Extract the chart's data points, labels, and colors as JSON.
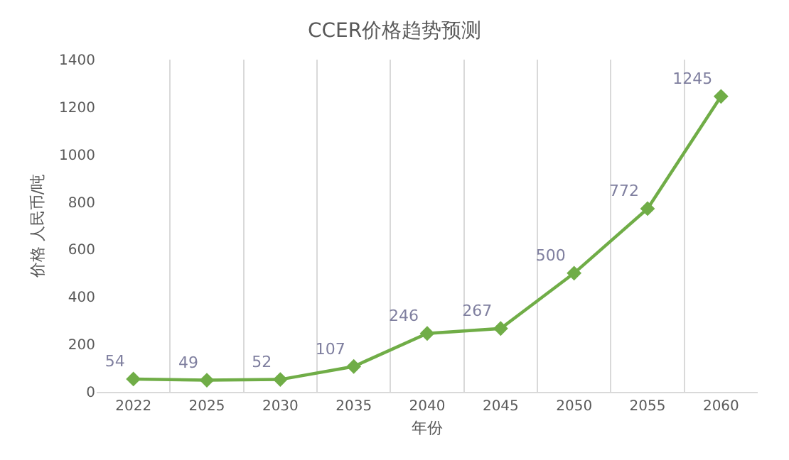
{
  "chart_data": {
    "type": "line",
    "title": "CCER价格趋势预测",
    "xlabel": "年份",
    "ylabel": "价格 人民币/吨",
    "categories": [
      "2022",
      "2025",
      "2030",
      "2035",
      "2040",
      "2045",
      "2050",
      "2055",
      "2060"
    ],
    "series": [
      {
        "color": "#70ad47",
        "values": [
          54,
          49,
          52,
          107,
          246,
          267,
          500,
          772,
          1245
        ]
      }
    ],
    "ylim": [
      0,
      1400
    ],
    "yticks": [
      0,
      200,
      400,
      600,
      800,
      1000,
      1200,
      1400
    ],
    "grid": "x",
    "marker": "diamond",
    "line_style": "solid",
    "data_labels": true
  }
}
